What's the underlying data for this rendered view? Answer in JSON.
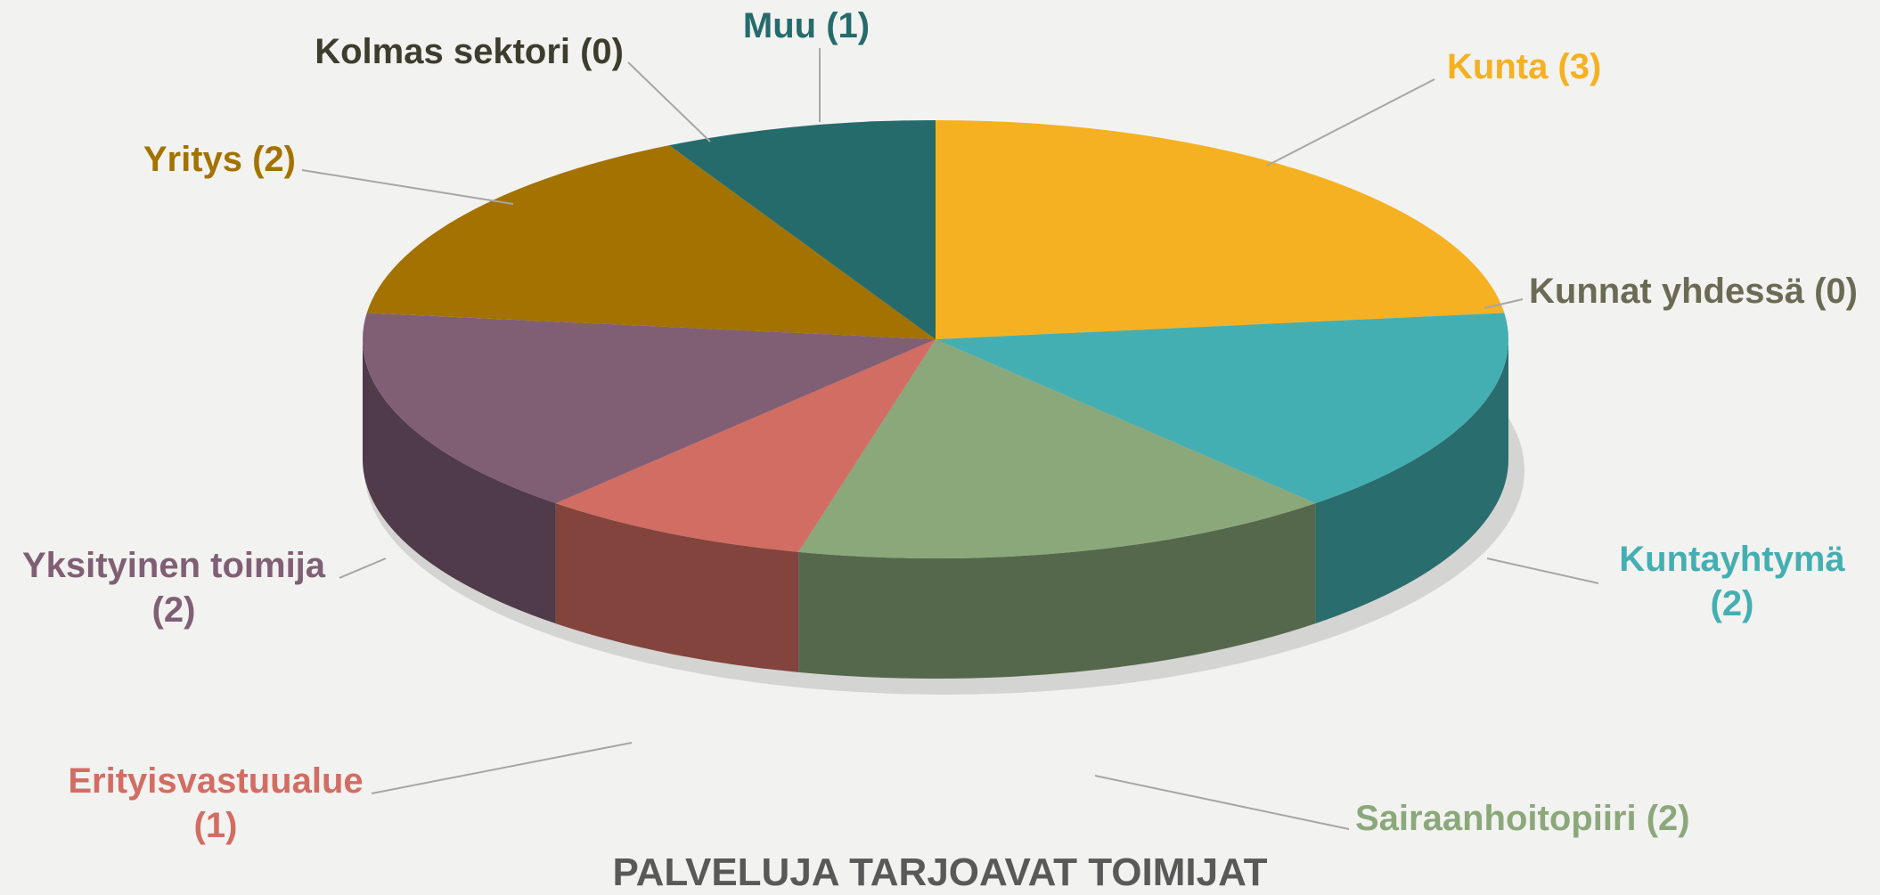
{
  "chart_data": {
    "type": "pie3d",
    "title": "PALVELUJA TARJOAVAT TOIMIJAT",
    "labels": [
      "Kunta (3)",
      "Kunnat yhdessä (0)",
      "Kuntayhtymä (2)",
      "Sairaanhoitopiiri (2)",
      "Erityisvastuualue (1)",
      "Yksityinen toimija (2)",
      "Yritys (2)",
      "Kolmas sektori (0)",
      "Muu (1)"
    ],
    "values": [
      3,
      0,
      2,
      2,
      1,
      2,
      2,
      0,
      1
    ],
    "colors": [
      "#f5b122",
      "#6b6b55",
      "#44afb2",
      "#8ba87b",
      "#d26d63",
      "#805f75",
      "#a37200",
      "#3d3d2d",
      "#256b6c"
    ]
  }
}
